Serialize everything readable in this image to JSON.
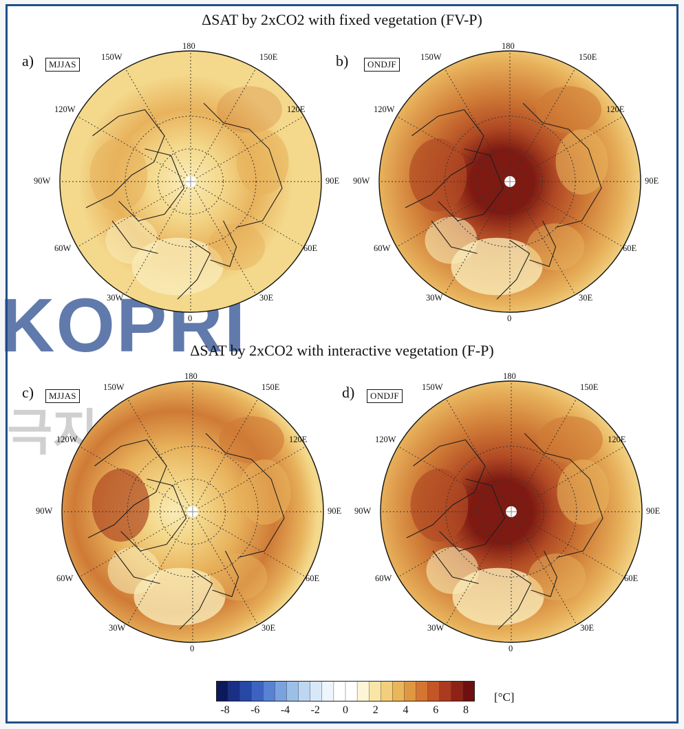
{
  "titles": {
    "top": "ΔSAT by 2xCO2 with fixed vegetation (FV-P)",
    "bottom": "ΔSAT by 2xCO2 with interactive vegetation (F-P)"
  },
  "panels": [
    {
      "tag": "a)",
      "season": "MJJAS",
      "intensity": 0.2,
      "west_bias": 0.1
    },
    {
      "tag": "b)",
      "season": "ONDJF",
      "intensity": 1.0,
      "west_bias": 0.15
    },
    {
      "tag": "c)",
      "season": "MJJAS",
      "intensity": 0.45,
      "west_bias": 0.35
    },
    {
      "tag": "d)",
      "season": "ONDJF",
      "intensity": 1.1,
      "west_bias": 0.2
    }
  ],
  "lon_labels": {
    "top": "180",
    "bottom": "0",
    "left": "90W",
    "right": "90E",
    "n150w": "150W",
    "n150e": "150E",
    "n120w": "120W",
    "n120e": "120E",
    "n60w": "60W",
    "n60e": "60E",
    "n30w": "30W",
    "n30e": "30E"
  },
  "watermark": {
    "latin": "KOPRI",
    "korean": "극지연구소"
  },
  "colorbar": {
    "ticks": [
      "-8",
      "-6",
      "-4",
      "-2",
      "0",
      "2",
      "4",
      "6",
      "8"
    ],
    "unit": "[°C]",
    "colors": [
      "#0b1a5c",
      "#1a2f86",
      "#2848a8",
      "#3d63c2",
      "#5882d2",
      "#7aa2de",
      "#9cbfe8",
      "#bdd6f1",
      "#d9e8f8",
      "#eef5fc",
      "#ffffff",
      "#ffffff",
      "#fdf6d6",
      "#f9e6a6",
      "#f3cf7d",
      "#eab65a",
      "#e09742",
      "#d47632",
      "#c45526",
      "#ac3a1e",
      "#8f2216",
      "#6e1010"
    ]
  },
  "map_colors": {
    "base": "#f4d98c",
    "light": "#f9ebb8",
    "warm": "#e8b25c",
    "hot": "#cf7a36",
    "hotter": "#b14a24",
    "hottest": "#7e1a12",
    "coast": "#1e1e1e",
    "grid": "#333333"
  }
}
